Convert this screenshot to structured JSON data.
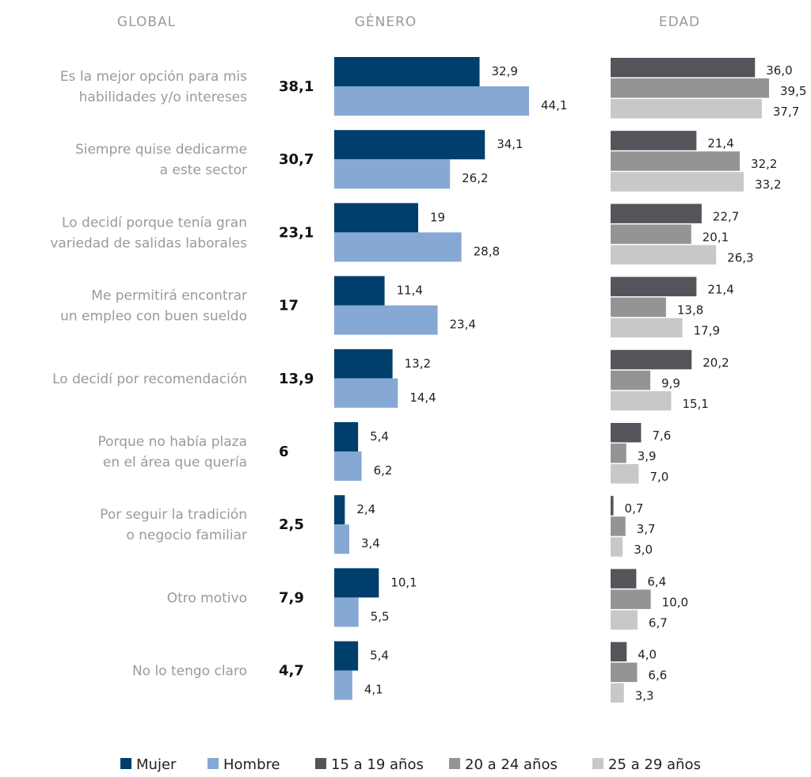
{
  "headers": {
    "global": "GLOBAL",
    "genero": "GÉNERO",
    "edad": "EDAD"
  },
  "chart_data": {
    "type": "bar",
    "orientation": "horizontal",
    "categories": [
      [
        "Es la mejor opción para mis",
        "habilidades y/o intereses"
      ],
      [
        "Siempre quise dedicarme",
        "a este sector"
      ],
      [
        "Lo decidí porque tenía gran",
        "variedad de salidas laborales"
      ],
      [
        "Me permitirá encontrar",
        "un empleo con buen sueldo"
      ],
      [
        "Lo decidí por recomendación"
      ],
      [
        "Porque no había plaza",
        "en el área que quería"
      ],
      [
        "Por seguir la tradición",
        "o negocio familiar"
      ],
      [
        "Otro motivo"
      ],
      [
        "No lo tengo claro"
      ]
    ],
    "global": [
      "38,1",
      "30,7",
      "23,1",
      "17",
      "13,9",
      "6",
      "2,5",
      "7,9",
      "4,7"
    ],
    "genero": {
      "series": [
        {
          "name": "Mujer",
          "color": "#003f6b",
          "values": [
            32.9,
            34.1,
            19,
            11.4,
            13.2,
            5.4,
            2.4,
            10.1,
            5.4
          ],
          "labels": [
            "32,9",
            "34,1",
            "19",
            "11,4",
            "13,2",
            "5,4",
            "2,4",
            "10,1",
            "5,4"
          ]
        },
        {
          "name": "Hombre",
          "color": "#86a8d4",
          "values": [
            44.1,
            26.2,
            28.8,
            23.4,
            14.4,
            6.2,
            3.4,
            5.5,
            4.1
          ],
          "labels": [
            "44,1",
            "26,2",
            "28,8",
            "23,4",
            "14,4",
            "6,2",
            "3,4",
            "5,5",
            "4,1"
          ]
        }
      ]
    },
    "edad": {
      "series": [
        {
          "name": "15 a 19 años",
          "color": "#54555a",
          "values": [
            36.0,
            21.4,
            22.7,
            21.4,
            20.2,
            7.6,
            0.7,
            6.4,
            4.0
          ],
          "labels": [
            "36,0",
            "21,4",
            "22,7",
            "21,4",
            "20,2",
            "7,6",
            "0,7",
            "6,4",
            "4,0"
          ]
        },
        {
          "name": "20 a 24 años",
          "color": "#949494",
          "values": [
            39.5,
            32.2,
            20.1,
            13.8,
            9.9,
            3.9,
            3.7,
            10.0,
            6.6
          ],
          "labels": [
            "39,5",
            "32,2",
            "20,1",
            "13,8",
            "9,9",
            "3,9",
            "3,7",
            "10,0",
            "6,6"
          ]
        },
        {
          "name": "25 a 29 años",
          "color": "#c8c8c8",
          "values": [
            37.7,
            33.2,
            26.3,
            17.9,
            15.1,
            7.0,
            3.0,
            6.7,
            3.3
          ],
          "labels": [
            "37,7",
            "33,2",
            "26,3",
            "17,9",
            "15,1",
            "7,0",
            "3,0",
            "6,7",
            "3,3"
          ]
        }
      ]
    },
    "legend": {
      "position": "bottom",
      "items": [
        {
          "label": "Mujer",
          "color": "#003f6b"
        },
        {
          "label": "Hombre",
          "color": "#86a8d4"
        },
        {
          "label": "15 a 19 años",
          "color": "#54555a"
        },
        {
          "label": "20 a 24 años",
          "color": "#949494"
        },
        {
          "label": "25 a 29 años",
          "color": "#c8c8c8"
        }
      ]
    }
  }
}
